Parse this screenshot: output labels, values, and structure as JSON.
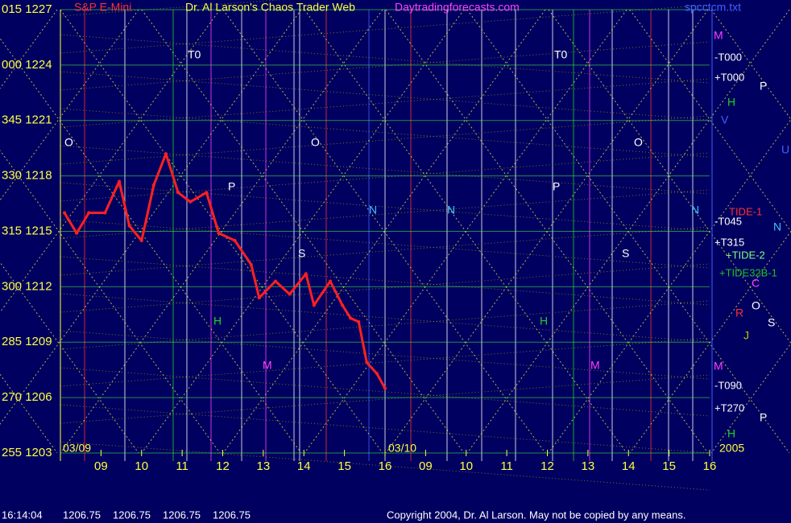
{
  "header": {
    "instrument": "S&P E-Mini",
    "title": "Dr. Al Larson's Chaos Trader Web",
    "site": "Daytradingforecasts.com",
    "file": "spcctcm.txt"
  },
  "chart_data": {
    "type": "line",
    "xlim": [
      0,
      16
    ],
    "ylim": [
      1203,
      1227
    ],
    "yticks": [
      {
        "value": 1227,
        "label": "015 1227"
      },
      {
        "value": 1224,
        "label": "000 1224"
      },
      {
        "value": 1221,
        "label": "345 1221"
      },
      {
        "value": 1218,
        "label": "330 1218"
      },
      {
        "value": 1215,
        "label": "315 1215"
      },
      {
        "value": 1212,
        "label": "300 1212"
      },
      {
        "value": 1209,
        "label": "285 1209"
      },
      {
        "value": 1206,
        "label": "270 1206"
      },
      {
        "value": 1203,
        "label": "255 1203"
      }
    ],
    "xticks": [
      {
        "value": 1,
        "label": "09"
      },
      {
        "value": 2,
        "label": "10"
      },
      {
        "value": 3,
        "label": "11"
      },
      {
        "value": 4,
        "label": "12"
      },
      {
        "value": 5,
        "label": "13"
      },
      {
        "value": 6,
        "label": "14"
      },
      {
        "value": 7,
        "label": "15"
      },
      {
        "value": 8,
        "label": "16"
      },
      {
        "value": 9,
        "label": "09"
      },
      {
        "value": 10,
        "label": "10"
      },
      {
        "value": 11,
        "label": "11"
      },
      {
        "value": 12,
        "label": "12"
      },
      {
        "value": 13,
        "label": "13"
      },
      {
        "value": 14,
        "label": "14"
      },
      {
        "value": 15,
        "label": "15"
      },
      {
        "value": 16,
        "label": "16"
      }
    ],
    "grid": true,
    "series": [
      {
        "name": "Price",
        "color": "#ff2020",
        "x": [
          0.1,
          0.4,
          0.7,
          1.1,
          1.45,
          1.7,
          2.0,
          2.3,
          2.6,
          2.9,
          3.2,
          3.6,
          3.9,
          4.3,
          4.7,
          4.9,
          5.3,
          5.65,
          6.05,
          6.25,
          6.65,
          6.95,
          7.15,
          7.35,
          7.55,
          7.8,
          8.0
        ],
        "values": [
          1216.0,
          1214.9,
          1216.0,
          1216.0,
          1217.7,
          1215.3,
          1214.5,
          1217.5,
          1219.2,
          1217.1,
          1216.6,
          1217.1,
          1214.9,
          1214.5,
          1213.2,
          1211.4,
          1212.3,
          1211.6,
          1212.7,
          1211.0,
          1212.3,
          1211.0,
          1210.3,
          1210.1,
          1207.9,
          1207.3,
          1206.5
        ]
      }
    ],
    "date_labels": [
      "03/09",
      "03/10",
      "2005"
    ],
    "right_labels": [
      "-T000",
      "+T000",
      "TIDE-1",
      "-T045",
      "+T315",
      "+TIDE-2",
      "+TIDE32B-1",
      "-T090",
      "+T270"
    ],
    "legend_letters": [
      "M",
      "P",
      "H",
      "V",
      "U",
      "N",
      "C",
      "R",
      "O",
      "S",
      "J",
      "M",
      "P",
      "H"
    ],
    "plot_letters": [
      "T0",
      "T0",
      "O",
      "O",
      "O",
      "P",
      "P",
      "N",
      "N",
      "N",
      "H",
      "H",
      "M",
      "M",
      "S",
      "S"
    ]
  },
  "status": {
    "time": "16:14:04",
    "quotes": [
      "1206.75",
      "1206.75",
      "1206.75",
      "1206.75"
    ],
    "copyright": "Copyright 2004, Dr. Al Larson. May not be copied by any means."
  }
}
